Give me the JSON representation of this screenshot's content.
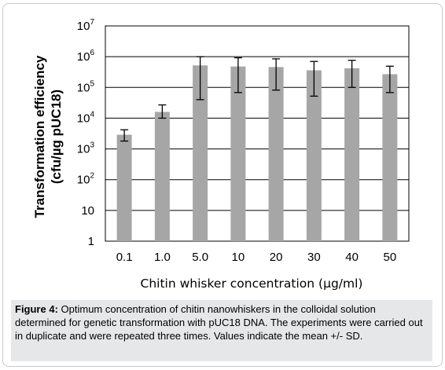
{
  "chart_data": {
    "type": "bar",
    "categories": [
      "0.1",
      "1.0",
      "5.0",
      "10",
      "20",
      "30",
      "40",
      "50"
    ],
    "values": [
      2900,
      16000,
      520000,
      480000,
      460000,
      360000,
      420000,
      270000
    ],
    "error_low": [
      1800,
      10000,
      40000,
      68000,
      82000,
      52000,
      100000,
      68000
    ],
    "error_high": [
      4200,
      27000,
      1000000,
      920000,
      850000,
      700000,
      760000,
      490000
    ],
    "xlabel": "Chitin whisker concentration (µg/ml)",
    "ylabel_line1": "Transformation efficiency",
    "ylabel_line2": "(cfu/µg pUC18)",
    "yscale": "log",
    "ylim": [
      1,
      10000000
    ],
    "yticks": [
      {
        "value": 1,
        "base": "1",
        "exp": ""
      },
      {
        "value": 10,
        "base": "10",
        "exp": ""
      },
      {
        "value": 100,
        "base": "10",
        "exp": "2"
      },
      {
        "value": 1000,
        "base": "10",
        "exp": "3"
      },
      {
        "value": 10000,
        "base": "10",
        "exp": "4"
      },
      {
        "value": 100000,
        "base": "10",
        "exp": "5"
      },
      {
        "value": 1000000,
        "base": "10",
        "exp": "6"
      },
      {
        "value": 10000000,
        "base": "10",
        "exp": "7"
      }
    ],
    "grid": true,
    "colors": {
      "bar": "#a6a6a6",
      "grid": "#000000",
      "error": "#000000"
    }
  },
  "caption": {
    "label": "Figure 4:",
    "text": " Optimum concentration of chitin nanowhiskers in the colloidal solution determined for genetic transformation with pUC18 DNA. The experiments were carried out in duplicate and were repeated three times. Values indicate the mean +/- SD."
  }
}
